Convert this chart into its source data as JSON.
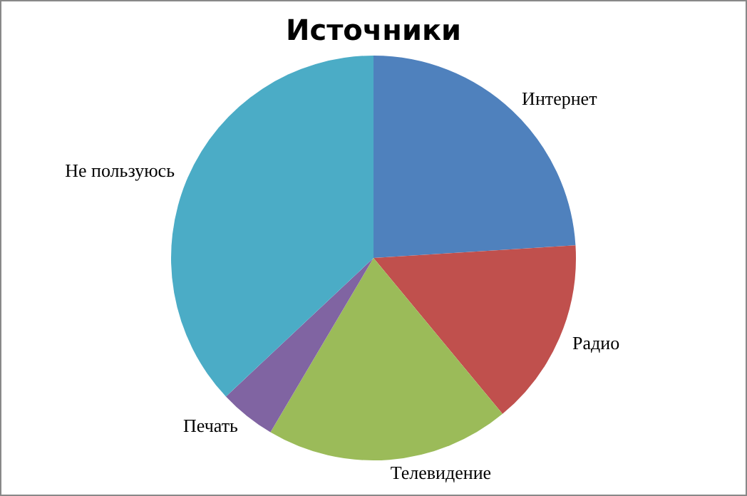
{
  "chart_data": {
    "type": "pie",
    "title": "Источники",
    "categories": [
      "Интернет",
      "Радио",
      "Телевидение",
      "Печать",
      "Не пользуюсь"
    ],
    "values": [
      24,
      15,
      19.5,
      4.5,
      37
    ],
    "colors": [
      "#4f81bd",
      "#c0504d",
      "#9bbb59",
      "#8064a2",
      "#4bacc6"
    ],
    "legend": false
  }
}
